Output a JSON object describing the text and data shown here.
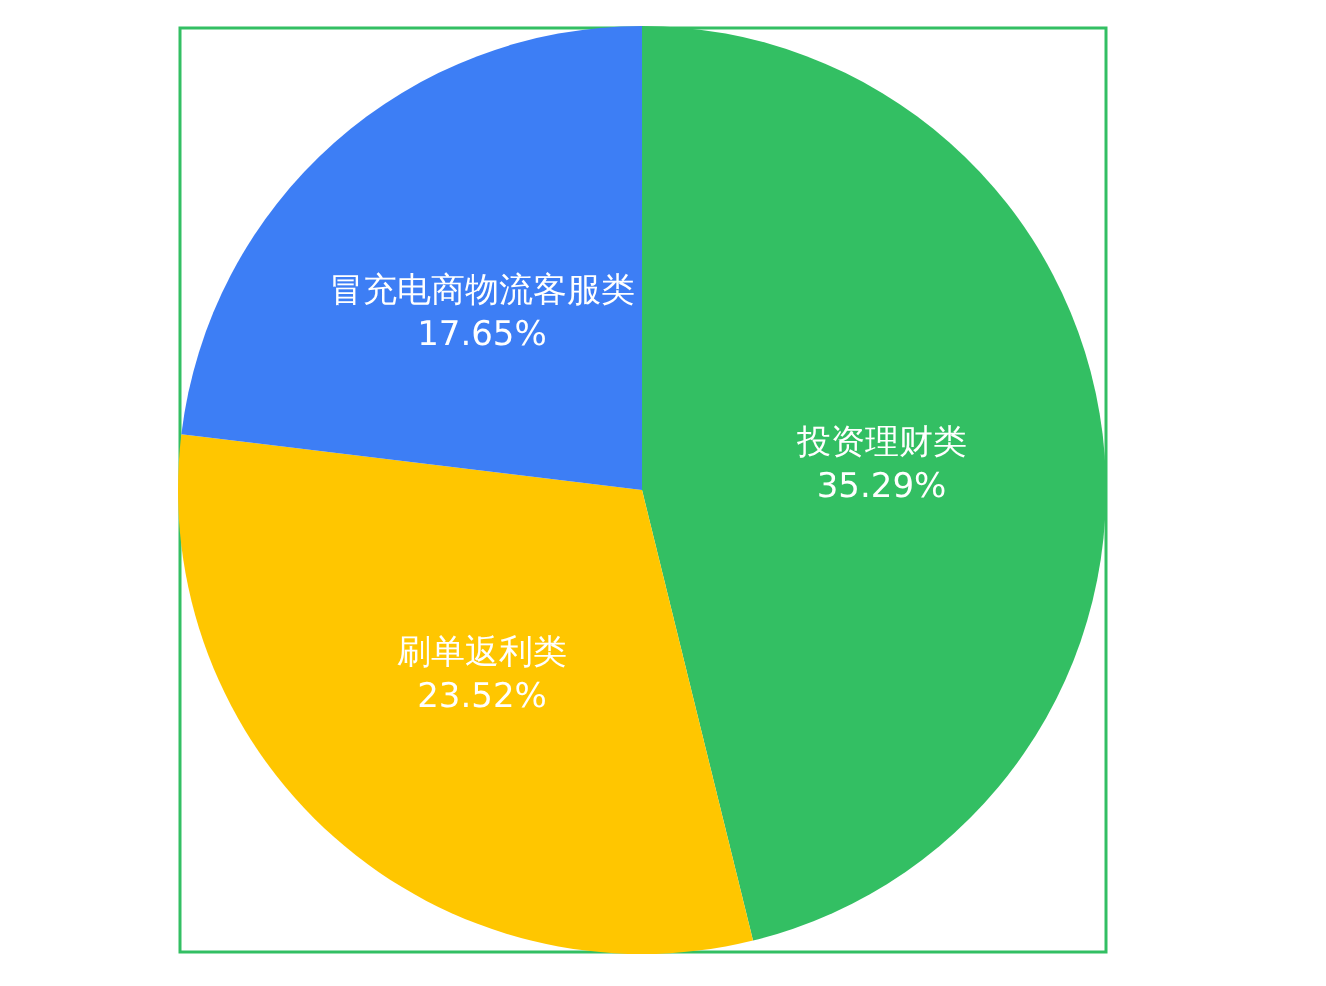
{
  "chart_data": {
    "type": "pie",
    "categories": [
      "投资理财类",
      "刷单返利类",
      "冒充电商物流客服类"
    ],
    "values": [
      35.29,
      23.52,
      17.65
    ],
    "value_labels": [
      "35.29%",
      "23.52%",
      "17.65%"
    ],
    "colors": [
      "#33bf63",
      "#ffc600",
      "#3d7ef5"
    ]
  }
}
